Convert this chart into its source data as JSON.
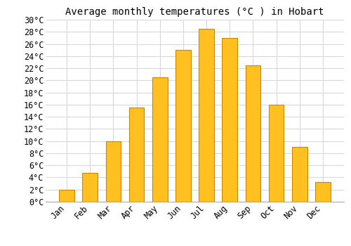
{
  "title": "Average monthly temperatures (°C ) in Hobart",
  "months": [
    "Jan",
    "Feb",
    "Mar",
    "Apr",
    "May",
    "Jun",
    "Jul",
    "Aug",
    "Sep",
    "Oct",
    "Nov",
    "Dec"
  ],
  "values": [
    2.0,
    4.8,
    10.0,
    15.5,
    20.5,
    25.0,
    28.5,
    27.0,
    22.5,
    16.0,
    9.0,
    3.2
  ],
  "bar_color": "#FFC020",
  "bar_edge_color": "#CC8800",
  "background_color": "#ffffff",
  "grid_color": "#d8d8d8",
  "ylim": [
    0,
    30
  ],
  "yticks": [
    0,
    2,
    4,
    6,
    8,
    10,
    12,
    14,
    16,
    18,
    20,
    22,
    24,
    26,
    28,
    30
  ],
  "title_fontsize": 10,
  "tick_fontsize": 8.5,
  "tick_font": "monospace"
}
